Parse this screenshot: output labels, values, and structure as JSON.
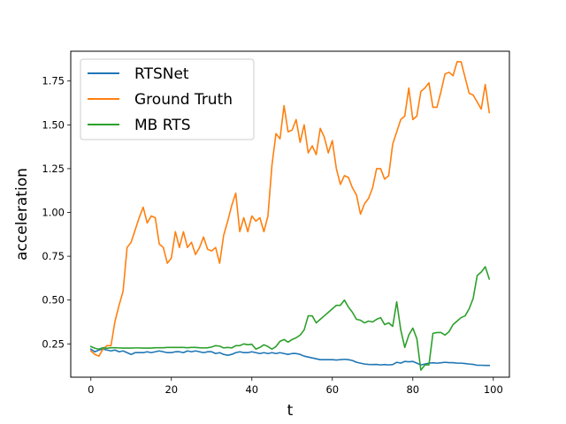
{
  "chart_data": {
    "type": "line",
    "title": "",
    "xlabel": "t",
    "ylabel": "acceleration",
    "xlim": [
      -5,
      104
    ],
    "ylim": [
      0.06,
      1.92
    ],
    "xticks": [
      0,
      20,
      40,
      60,
      80,
      100
    ],
    "xtick_labels": [
      "0",
      "20",
      "40",
      "60",
      "80",
      "100"
    ],
    "yticks": [
      0.25,
      0.5,
      0.75,
      1.0,
      1.25,
      1.5,
      1.75
    ],
    "ytick_labels": [
      "0.25",
      "0.50",
      "0.75",
      "1.00",
      "1.25",
      "1.50",
      "1.75"
    ],
    "grid": false,
    "legend_position": "top-left",
    "x": [
      0,
      1,
      2,
      3,
      4,
      5,
      6,
      7,
      8,
      9,
      10,
      11,
      12,
      13,
      14,
      15,
      16,
      17,
      18,
      19,
      20,
      21,
      22,
      23,
      24,
      25,
      26,
      27,
      28,
      29,
      30,
      31,
      32,
      33,
      34,
      35,
      36,
      37,
      38,
      39,
      40,
      41,
      42,
      43,
      44,
      45,
      46,
      47,
      48,
      49,
      50,
      51,
      52,
      53,
      54,
      55,
      56,
      57,
      58,
      59,
      60,
      61,
      62,
      63,
      64,
      65,
      66,
      67,
      68,
      69,
      70,
      71,
      72,
      73,
      74,
      75,
      76,
      77,
      78,
      79,
      80,
      81,
      82,
      83,
      84,
      85,
      86,
      87,
      88,
      89,
      90,
      91,
      92,
      93,
      94,
      95,
      96,
      97,
      98,
      99
    ],
    "series": [
      {
        "name": "RTSNet",
        "color": "#1f77b4",
        "values": [
          0.22,
          0.205,
          0.215,
          0.22,
          0.215,
          0.21,
          0.215,
          0.205,
          0.21,
          0.2,
          0.19,
          0.2,
          0.2,
          0.2,
          0.205,
          0.2,
          0.205,
          0.21,
          0.205,
          0.2,
          0.2,
          0.205,
          0.205,
          0.2,
          0.21,
          0.205,
          0.21,
          0.205,
          0.2,
          0.205,
          0.205,
          0.195,
          0.2,
          0.19,
          0.185,
          0.19,
          0.2,
          0.205,
          0.2,
          0.2,
          0.205,
          0.2,
          0.195,
          0.2,
          0.195,
          0.2,
          0.195,
          0.2,
          0.195,
          0.19,
          0.195,
          0.195,
          0.19,
          0.18,
          0.175,
          0.17,
          0.165,
          0.16,
          0.16,
          0.16,
          0.16,
          0.158,
          0.16,
          0.162,
          0.16,
          0.155,
          0.145,
          0.14,
          0.135,
          0.133,
          0.132,
          0.133,
          0.13,
          0.132,
          0.13,
          0.132,
          0.145,
          0.14,
          0.15,
          0.148,
          0.15,
          0.14,
          0.13,
          0.135,
          0.14,
          0.142,
          0.14,
          0.142,
          0.145,
          0.143,
          0.143,
          0.14,
          0.14,
          0.138,
          0.135,
          0.133,
          0.128,
          0.128,
          0.127,
          0.127
        ]
      },
      {
        "name": "Ground Truth",
        "color": "#ff7f0e",
        "values": [
          0.21,
          0.19,
          0.18,
          0.22,
          0.24,
          0.24,
          0.38,
          0.47,
          0.55,
          0.8,
          0.83,
          0.9,
          0.97,
          1.03,
          0.94,
          0.98,
          0.97,
          0.82,
          0.8,
          0.71,
          0.74,
          0.89,
          0.8,
          0.89,
          0.8,
          0.83,
          0.76,
          0.8,
          0.86,
          0.79,
          0.78,
          0.8,
          0.71,
          0.87,
          0.95,
          1.04,
          1.11,
          0.89,
          0.97,
          0.89,
          0.98,
          0.95,
          0.97,
          0.89,
          0.98,
          1.27,
          1.45,
          1.42,
          1.61,
          1.46,
          1.47,
          1.53,
          1.4,
          1.5,
          1.34,
          1.38,
          1.33,
          1.48,
          1.43,
          1.34,
          1.41,
          1.25,
          1.16,
          1.21,
          1.2,
          1.14,
          1.1,
          0.99,
          1.05,
          1.08,
          1.14,
          1.25,
          1.25,
          1.19,
          1.21,
          1.39,
          1.46,
          1.53,
          1.55,
          1.71,
          1.53,
          1.55,
          1.69,
          1.71,
          1.74,
          1.6,
          1.6,
          1.69,
          1.79,
          1.8,
          1.78,
          1.86,
          1.86,
          1.77,
          1.68,
          1.67,
          1.63,
          1.59,
          1.73,
          1.57
        ]
      },
      {
        "name": "MB RTS",
        "color": "#2ca02c",
        "values": [
          0.235,
          0.225,
          0.22,
          0.228,
          0.225,
          0.228,
          0.228,
          0.227,
          0.226,
          0.226,
          0.226,
          0.227,
          0.227,
          0.226,
          0.226,
          0.226,
          0.228,
          0.228,
          0.228,
          0.23,
          0.23,
          0.23,
          0.23,
          0.23,
          0.228,
          0.23,
          0.23,
          0.228,
          0.227,
          0.228,
          0.232,
          0.24,
          0.237,
          0.227,
          0.23,
          0.227,
          0.24,
          0.24,
          0.25,
          0.245,
          0.248,
          0.22,
          0.23,
          0.245,
          0.235,
          0.22,
          0.235,
          0.265,
          0.275,
          0.26,
          0.275,
          0.285,
          0.3,
          0.33,
          0.41,
          0.41,
          0.37,
          0.39,
          0.41,
          0.43,
          0.45,
          0.47,
          0.47,
          0.5,
          0.46,
          0.43,
          0.39,
          0.385,
          0.37,
          0.38,
          0.375,
          0.39,
          0.4,
          0.36,
          0.37,
          0.35,
          0.49,
          0.33,
          0.23,
          0.3,
          0.34,
          0.28,
          0.1,
          0.13,
          0.13,
          0.31,
          0.315,
          0.315,
          0.3,
          0.32,
          0.36,
          0.38,
          0.4,
          0.41,
          0.45,
          0.51,
          0.64,
          0.66,
          0.69,
          0.62
        ]
      }
    ]
  }
}
